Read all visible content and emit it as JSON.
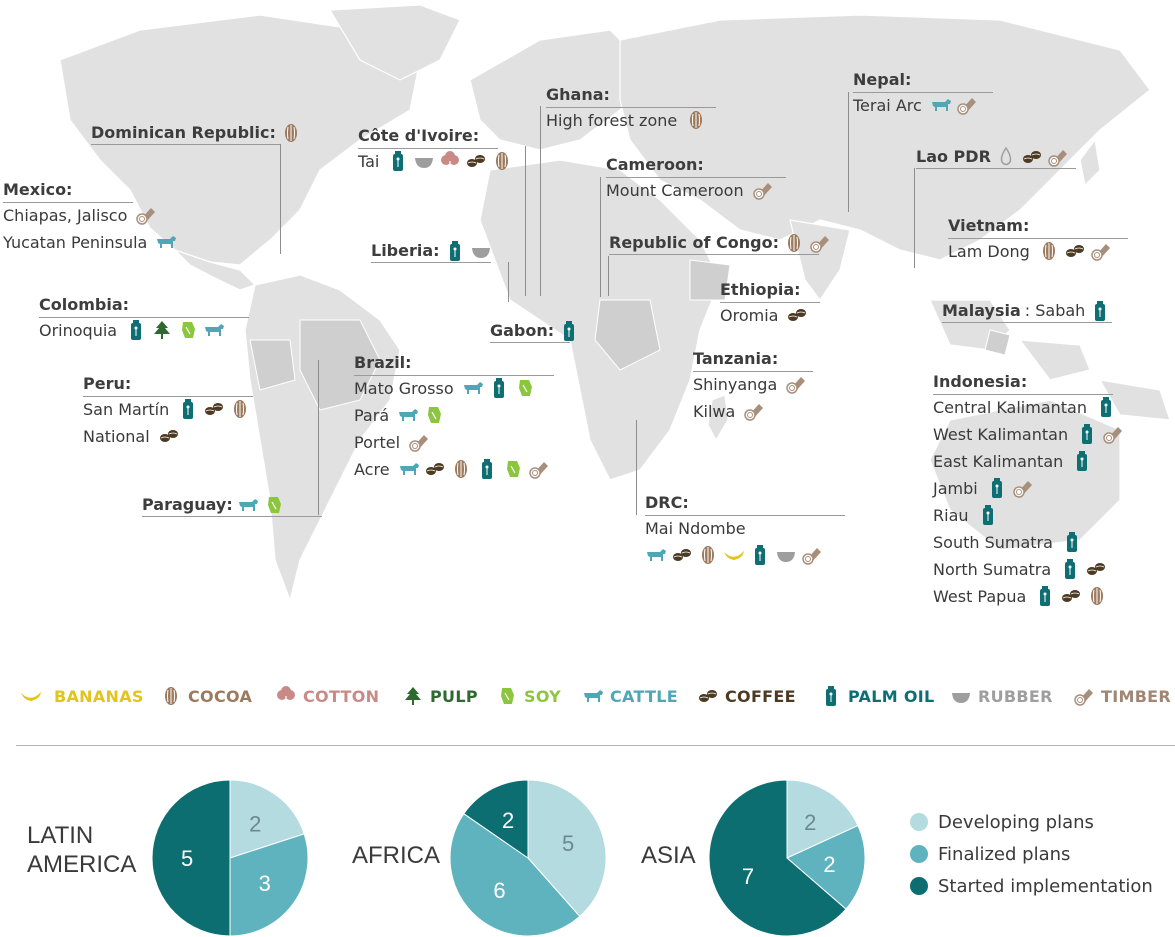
{
  "colors": {
    "bananas": "#e2c51c",
    "cocoa": "#9c7a5e",
    "cotton": "#c98a87",
    "pulp": "#2e6a30",
    "soy": "#8cc63f",
    "cattle": "#4fa6b6",
    "coffee": "#4d3a22",
    "palm_oil": "#0d6f73",
    "rubber": "#9e9e9e",
    "timber": "#a88f7c",
    "land": "#e1e1e1",
    "land_dark": "#cfcfcf",
    "developing": "#b3dbe0",
    "finalized": "#5fb3bf",
    "started": "#0d6e71"
  },
  "regions": [
    {
      "name": "Dominican Republic:",
      "after": "",
      "rows": [
        {
          "text": "",
          "icons": [
            "cocoa"
          ]
        }
      ],
      "inline": true
    },
    {
      "name": "Mexico:",
      "after": "",
      "rows": [
        {
          "text": "Chiapas, Jalisco",
          "icons": [
            "timber"
          ]
        },
        {
          "text": "Yucatan Peninsula",
          "icons": [
            "cattle"
          ]
        }
      ]
    },
    {
      "name": "Côte d'Ivoire:",
      "after": "",
      "rows": [
        {
          "text": "Tai",
          "icons": [
            "palm_oil",
            "rubber",
            "cotton",
            "coffee",
            "cocoa"
          ]
        }
      ]
    },
    {
      "name": "Ghana:",
      "after": "",
      "rows": [
        {
          "text": "High forest zone",
          "icons": [
            "cocoa"
          ]
        }
      ]
    },
    {
      "name": "Cameroon:",
      "after": "",
      "rows": [
        {
          "text": "Mount Cameroon",
          "icons": [
            "timber"
          ]
        }
      ]
    },
    {
      "name": "Nepal:",
      "after": "",
      "rows": [
        {
          "text": "Terai Arc",
          "icons": [
            "cattle",
            "timber"
          ]
        }
      ]
    },
    {
      "name": "Lao PDR",
      "after": "",
      "rows": [
        {
          "text": "",
          "icons": [
            "drop",
            "coffee",
            "timber"
          ]
        }
      ],
      "inline": true
    },
    {
      "name": "Liberia:",
      "after": "",
      "rows": [
        {
          "text": "",
          "icons": [
            "palm_oil",
            "rubber"
          ]
        }
      ],
      "inline": true
    },
    {
      "name": "Republic of Congo:",
      "after": "",
      "rows": [
        {
          "text": "",
          "icons": [
            "cocoa",
            "timber"
          ]
        }
      ],
      "inline": true
    },
    {
      "name": "Vietnam:",
      "after": "",
      "rows": [
        {
          "text": "Lam Dong",
          "icons": [
            "cocoa",
            "coffee",
            "timber"
          ]
        }
      ]
    },
    {
      "name": "Colombia:",
      "after": "",
      "rows": [
        {
          "text": "Orinoquia",
          "icons": [
            "palm_oil",
            "pulp",
            "soy",
            "cattle"
          ]
        }
      ]
    },
    {
      "name": "Ethiopia:",
      "after": "",
      "rows": [
        {
          "text": "Oromia",
          "icons": [
            "coffee"
          ]
        }
      ]
    },
    {
      "name": "Malaysia",
      "after": ": Sabah",
      "rows": [
        {
          "text": "",
          "icons": [
            "palm_oil"
          ]
        }
      ],
      "inline": true
    },
    {
      "name": "Gabon:",
      "after": "",
      "rows": [
        {
          "text": "",
          "icons": [
            "palm_oil"
          ]
        }
      ],
      "inline": true
    },
    {
      "name": "Brazil:",
      "after": "",
      "rows": [
        {
          "text": "Mato Grosso",
          "icons": [
            "cattle",
            "palm_oil",
            "soy"
          ]
        },
        {
          "text": "Pará",
          "icons": [
            "cattle",
            "soy"
          ]
        },
        {
          "text": "Portel",
          "icons": [
            "timber"
          ]
        },
        {
          "text": "Acre",
          "icons": [
            "cattle",
            "coffee",
            "cocoa",
            "palm_oil",
            "soy",
            "timber"
          ]
        }
      ]
    },
    {
      "name": "Tanzania:",
      "after": "",
      "rows": [
        {
          "text": "Shinyanga",
          "icons": [
            "timber"
          ]
        },
        {
          "text": "Kilwa",
          "icons": [
            "timber"
          ]
        }
      ]
    },
    {
      "name": "Peru:",
      "after": "",
      "rows": [
        {
          "text": "San Martín",
          "icons": [
            "palm_oil",
            "coffee",
            "cocoa"
          ]
        },
        {
          "text": "National",
          "icons": [
            "coffee"
          ]
        }
      ]
    },
    {
      "name": "Indonesia:",
      "after": "",
      "rows": [
        {
          "text": "Central Kalimantan",
          "icons": [
            "palm_oil"
          ]
        },
        {
          "text": "West Kalimantan",
          "icons": [
            "palm_oil",
            "timber"
          ]
        },
        {
          "text": "East Kalimantan",
          "icons": [
            "palm_oil"
          ]
        },
        {
          "text": "Jambi",
          "icons": [
            "palm_oil",
            "timber"
          ]
        },
        {
          "text": "Riau",
          "icons": [
            "palm_oil"
          ]
        },
        {
          "text": "South Sumatra",
          "icons": [
            "palm_oil"
          ]
        },
        {
          "text": "North Sumatra",
          "icons": [
            "palm_oil",
            "coffee"
          ]
        },
        {
          "text": "West Papua",
          "icons": [
            "palm_oil",
            "coffee",
            "cocoa"
          ]
        }
      ]
    },
    {
      "name": "Paraguay:",
      "after": "",
      "rows": [
        {
          "text": "",
          "icons": [
            "cattle",
            "soy"
          ]
        }
      ],
      "inline": true
    },
    {
      "name": "DRC:",
      "after": "",
      "rows": [
        {
          "text": "Mai Ndombe",
          "icons": []
        },
        {
          "text": "",
          "icons": [
            "cattle",
            "coffee",
            "cocoa",
            "bananas",
            "palm_oil",
            "rubber",
            "timber"
          ]
        }
      ]
    }
  ],
  "legend": [
    {
      "key": "bananas",
      "label": "BANANAS"
    },
    {
      "key": "cocoa",
      "label": "COCOA"
    },
    {
      "key": "cotton",
      "label": "COTTON"
    },
    {
      "key": "pulp",
      "label": "PULP"
    },
    {
      "key": "soy",
      "label": "SOY"
    },
    {
      "key": "cattle",
      "label": "CATTLE"
    },
    {
      "key": "coffee",
      "label": "COFFEE"
    },
    {
      "key": "palm_oil",
      "label": "PALM OIL"
    },
    {
      "key": "rubber",
      "label": "RUBBER"
    },
    {
      "key": "timber",
      "label": "TIMBER"
    }
  ],
  "chart_data": [
    {
      "type": "pie",
      "title": "LATIN AMERICA",
      "categories": [
        "Developing plans",
        "Finalized plans",
        "Started implementation"
      ],
      "values": [
        2,
        3,
        5
      ]
    },
    {
      "type": "pie",
      "title": "AFRICA",
      "categories": [
        "Developing plans",
        "Finalized plans",
        "Started implementation"
      ],
      "values": [
        5,
        6,
        2
      ]
    },
    {
      "type": "pie",
      "title": "ASIA",
      "categories": [
        "Developing plans",
        "Finalized plans",
        "Started implementation"
      ],
      "values": [
        2,
        2,
        7
      ]
    }
  ],
  "pie_legend": [
    "Developing plans",
    "Finalized plans",
    "Started implementation"
  ],
  "region_titles": {
    "latin": "LATIN\nAMERICA",
    "africa": "AFRICA",
    "asia": "ASIA"
  }
}
